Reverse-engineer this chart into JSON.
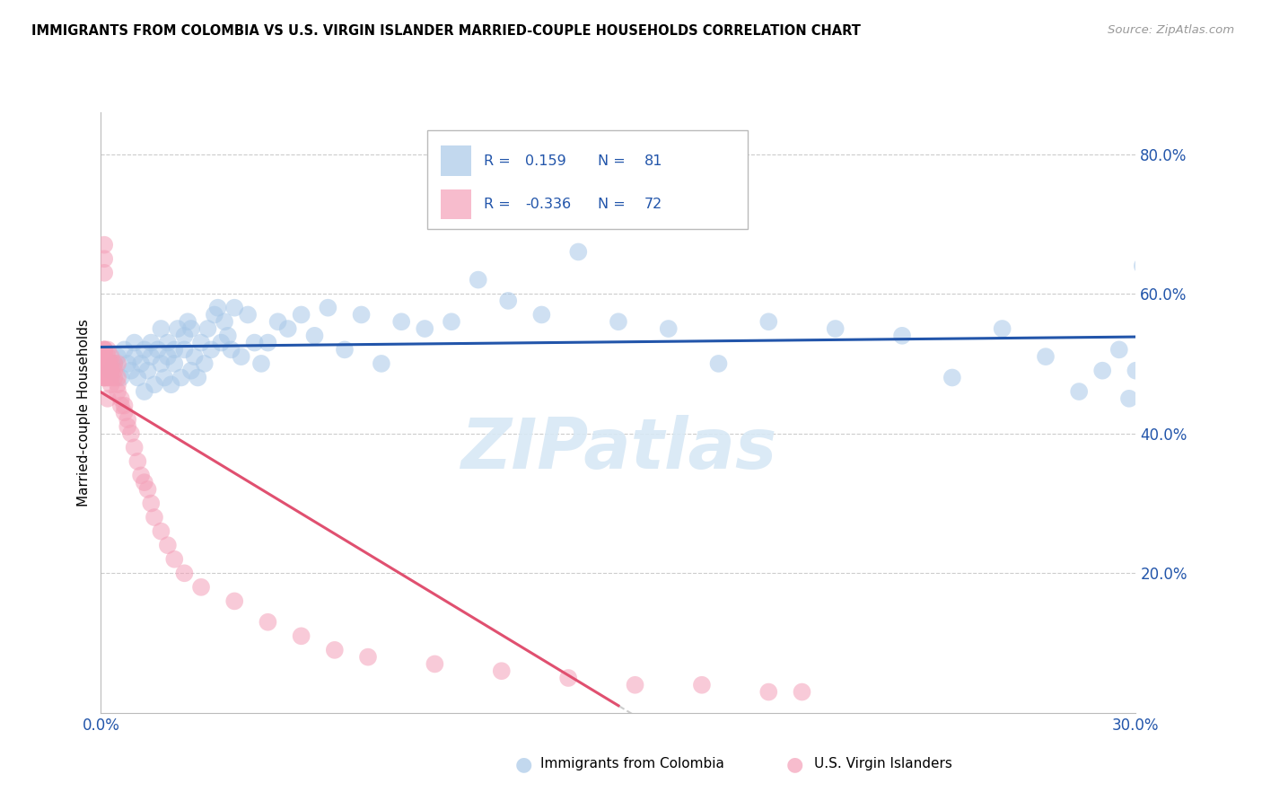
{
  "title": "IMMIGRANTS FROM COLOMBIA VS U.S. VIRGIN ISLANDER MARRIED-COUPLE HOUSEHOLDS CORRELATION CHART",
  "source": "Source: ZipAtlas.com",
  "ylabel": "Married-couple Households",
  "blue_R": 0.159,
  "blue_N": 81,
  "pink_R": -0.336,
  "pink_N": 72,
  "blue_color": "#A8C8E8",
  "pink_color": "#F4A0B8",
  "blue_line_color": "#2255AA",
  "pink_line_color": "#E05070",
  "right_axis_color": "#2255AA",
  "legend_text_color": "#2255AA",
  "grid_color": "#CCCCCC",
  "watermark": "ZIPatlas",
  "legend_label_blue": "Immigrants from Colombia",
  "legend_label_pink": "U.S. Virgin Islanders",
  "blue_scatter_x": [
    0.003,
    0.004,
    0.005,
    0.006,
    0.007,
    0.008,
    0.009,
    0.01,
    0.01,
    0.011,
    0.012,
    0.013,
    0.013,
    0.014,
    0.015,
    0.015,
    0.016,
    0.017,
    0.018,
    0.018,
    0.019,
    0.02,
    0.02,
    0.021,
    0.022,
    0.022,
    0.023,
    0.024,
    0.025,
    0.025,
    0.026,
    0.027,
    0.027,
    0.028,
    0.029,
    0.03,
    0.031,
    0.032,
    0.033,
    0.034,
    0.035,
    0.036,
    0.037,
    0.038,
    0.039,
    0.04,
    0.042,
    0.044,
    0.046,
    0.048,
    0.05,
    0.053,
    0.056,
    0.06,
    0.064,
    0.068,
    0.073,
    0.078,
    0.084,
    0.09,
    0.097,
    0.105,
    0.113,
    0.122,
    0.132,
    0.143,
    0.155,
    0.17,
    0.185,
    0.2,
    0.22,
    0.24,
    0.255,
    0.27,
    0.283,
    0.293,
    0.3,
    0.305,
    0.308,
    0.31,
    0.312
  ],
  "blue_scatter_y": [
    0.49,
    0.5,
    0.51,
    0.48,
    0.52,
    0.5,
    0.49,
    0.51,
    0.53,
    0.48,
    0.5,
    0.52,
    0.46,
    0.49,
    0.51,
    0.53,
    0.47,
    0.52,
    0.5,
    0.55,
    0.48,
    0.53,
    0.51,
    0.47,
    0.52,
    0.5,
    0.55,
    0.48,
    0.52,
    0.54,
    0.56,
    0.49,
    0.55,
    0.51,
    0.48,
    0.53,
    0.5,
    0.55,
    0.52,
    0.57,
    0.58,
    0.53,
    0.56,
    0.54,
    0.52,
    0.58,
    0.51,
    0.57,
    0.53,
    0.5,
    0.53,
    0.56,
    0.55,
    0.57,
    0.54,
    0.58,
    0.52,
    0.57,
    0.5,
    0.56,
    0.55,
    0.56,
    0.62,
    0.59,
    0.57,
    0.66,
    0.56,
    0.55,
    0.5,
    0.56,
    0.55,
    0.54,
    0.48,
    0.55,
    0.51,
    0.46,
    0.49,
    0.52,
    0.45,
    0.49,
    0.64
  ],
  "pink_scatter_x": [
    0.001,
    0.001,
    0.001,
    0.001,
    0.001,
    0.001,
    0.001,
    0.001,
    0.001,
    0.001,
    0.001,
    0.001,
    0.001,
    0.001,
    0.001,
    0.001,
    0.001,
    0.001,
    0.001,
    0.001,
    0.002,
    0.002,
    0.002,
    0.002,
    0.002,
    0.002,
    0.002,
    0.002,
    0.003,
    0.003,
    0.003,
    0.003,
    0.003,
    0.003,
    0.004,
    0.004,
    0.004,
    0.005,
    0.005,
    0.005,
    0.005,
    0.006,
    0.006,
    0.007,
    0.007,
    0.008,
    0.008,
    0.009,
    0.01,
    0.011,
    0.012,
    0.013,
    0.014,
    0.015,
    0.016,
    0.018,
    0.02,
    0.022,
    0.025,
    0.03,
    0.04,
    0.05,
    0.06,
    0.07,
    0.08,
    0.1,
    0.12,
    0.14,
    0.16,
    0.18,
    0.2,
    0.21
  ],
  "pink_scatter_y": [
    0.49,
    0.5,
    0.51,
    0.52,
    0.48,
    0.5,
    0.49,
    0.51,
    0.63,
    0.65,
    0.67,
    0.5,
    0.52,
    0.48,
    0.49,
    0.51,
    0.52,
    0.5,
    0.48,
    0.49,
    0.5,
    0.51,
    0.48,
    0.49,
    0.45,
    0.48,
    0.5,
    0.52,
    0.49,
    0.51,
    0.5,
    0.48,
    0.47,
    0.49,
    0.5,
    0.48,
    0.49,
    0.5,
    0.48,
    0.47,
    0.46,
    0.45,
    0.44,
    0.44,
    0.43,
    0.42,
    0.41,
    0.4,
    0.38,
    0.36,
    0.34,
    0.33,
    0.32,
    0.3,
    0.28,
    0.26,
    0.24,
    0.22,
    0.2,
    0.18,
    0.16,
    0.13,
    0.11,
    0.09,
    0.08,
    0.07,
    0.06,
    0.05,
    0.04,
    0.04,
    0.03,
    0.03
  ],
  "xlim": [
    0.0,
    0.31
  ],
  "ylim": [
    0.0,
    0.86
  ],
  "y_ticks": [
    0.2,
    0.4,
    0.6,
    0.8
  ],
  "y_tick_labels": [
    "20.0%",
    "40.0%",
    "60.0%",
    "80.0%"
  ],
  "x_tick_left": "0.0%",
  "x_tick_right": "30.0%"
}
